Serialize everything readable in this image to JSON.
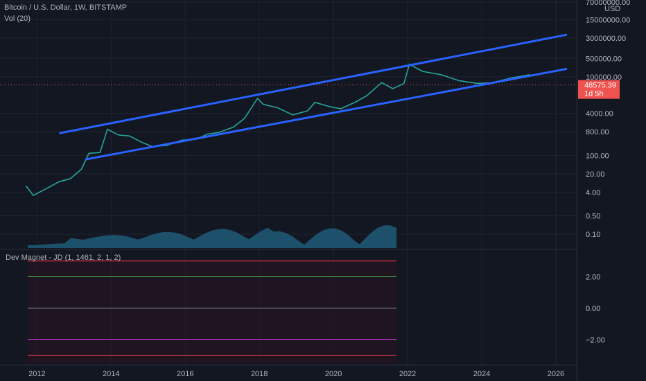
{
  "header": {
    "title": "Bitcoin / U.S. Dollar, 1W, BITSTAMP",
    "volume_label": "Vol (20)",
    "indicator_label": "Dev Magnet - JD (1, 1461, 2, 1, 2)"
  },
  "colors": {
    "background": "#131722",
    "grid": "#1f2330",
    "channel": "#2962ff",
    "up": "#26a69a",
    "down": "#ef5350",
    "price_line": "#ef5350",
    "level_green": "#4caf50",
    "level_magenta": "#e040fb",
    "level_red": "#f23645"
  },
  "chart_data": [
    {
      "type": "line",
      "title": "Bitcoin / U.S. Dollar, 1W, BITSTAMP",
      "y_scale": "log",
      "currency_label": "USD",
      "x_ticks": [
        "2012",
        "2014",
        "2016",
        "2018",
        "2020",
        "2022",
        "2024",
        "2026"
      ],
      "y_ticks": [
        "70000000.00",
        "15000000.00",
        "3000000.00",
        "500000.00",
        "100000.00",
        "4000.00",
        "800.00",
        "100.00",
        "20.00",
        "4.00",
        "0.50",
        "0.10"
      ],
      "last_price": "48575.39",
      "time_to_close": "1d 5h",
      "price_series": {
        "x": [
          2011.7,
          2011.9,
          2012.2,
          2012.6,
          2012.9,
          2013.2,
          2013.4,
          2013.7,
          2013.9,
          2014.2,
          2014.5,
          2014.8,
          2015.1,
          2015.5,
          2015.9,
          2016.3,
          2016.6,
          2016.9,
          2017.3,
          2017.6,
          2017.95,
          2018.1,
          2018.5,
          2018.9,
          2019.3,
          2019.5,
          2019.9,
          2020.2,
          2020.6,
          2020.9,
          2021.3,
          2021.6,
          2021.9,
          2022.05,
          2022.4,
          2022.9,
          2023.4,
          2023.9,
          2024.3,
          2024.8,
          2025.3
        ],
        "y": [
          7,
          3,
          5,
          10,
          13,
          30,
          120,
          130,
          1000,
          600,
          550,
          330,
          220,
          240,
          380,
          420,
          650,
          750,
          1200,
          2600,
          15000,
          9000,
          6500,
          3500,
          5000,
          10500,
          7200,
          6000,
          11000,
          19000,
          60000,
          35000,
          55000,
          300000,
          160000,
          120000,
          70000,
          55000,
          60000,
          90000,
          120000
        ]
      },
      "channel": {
        "upper": {
          "x": [
            2012.6,
            2026.3
          ],
          "y": [
            700,
            4000000
          ]
        },
        "lower": {
          "x": [
            2013.3,
            2026.3
          ],
          "y": [
            70,
            200000
          ]
        }
      }
    },
    {
      "type": "line",
      "title": "Dev Magnet - JD (1, 1461, 2, 1, 2)",
      "y_ticks": [
        "2.00",
        "0.00",
        "−2.00"
      ],
      "levels": [
        3,
        2,
        0,
        -2,
        -3
      ]
    }
  ]
}
